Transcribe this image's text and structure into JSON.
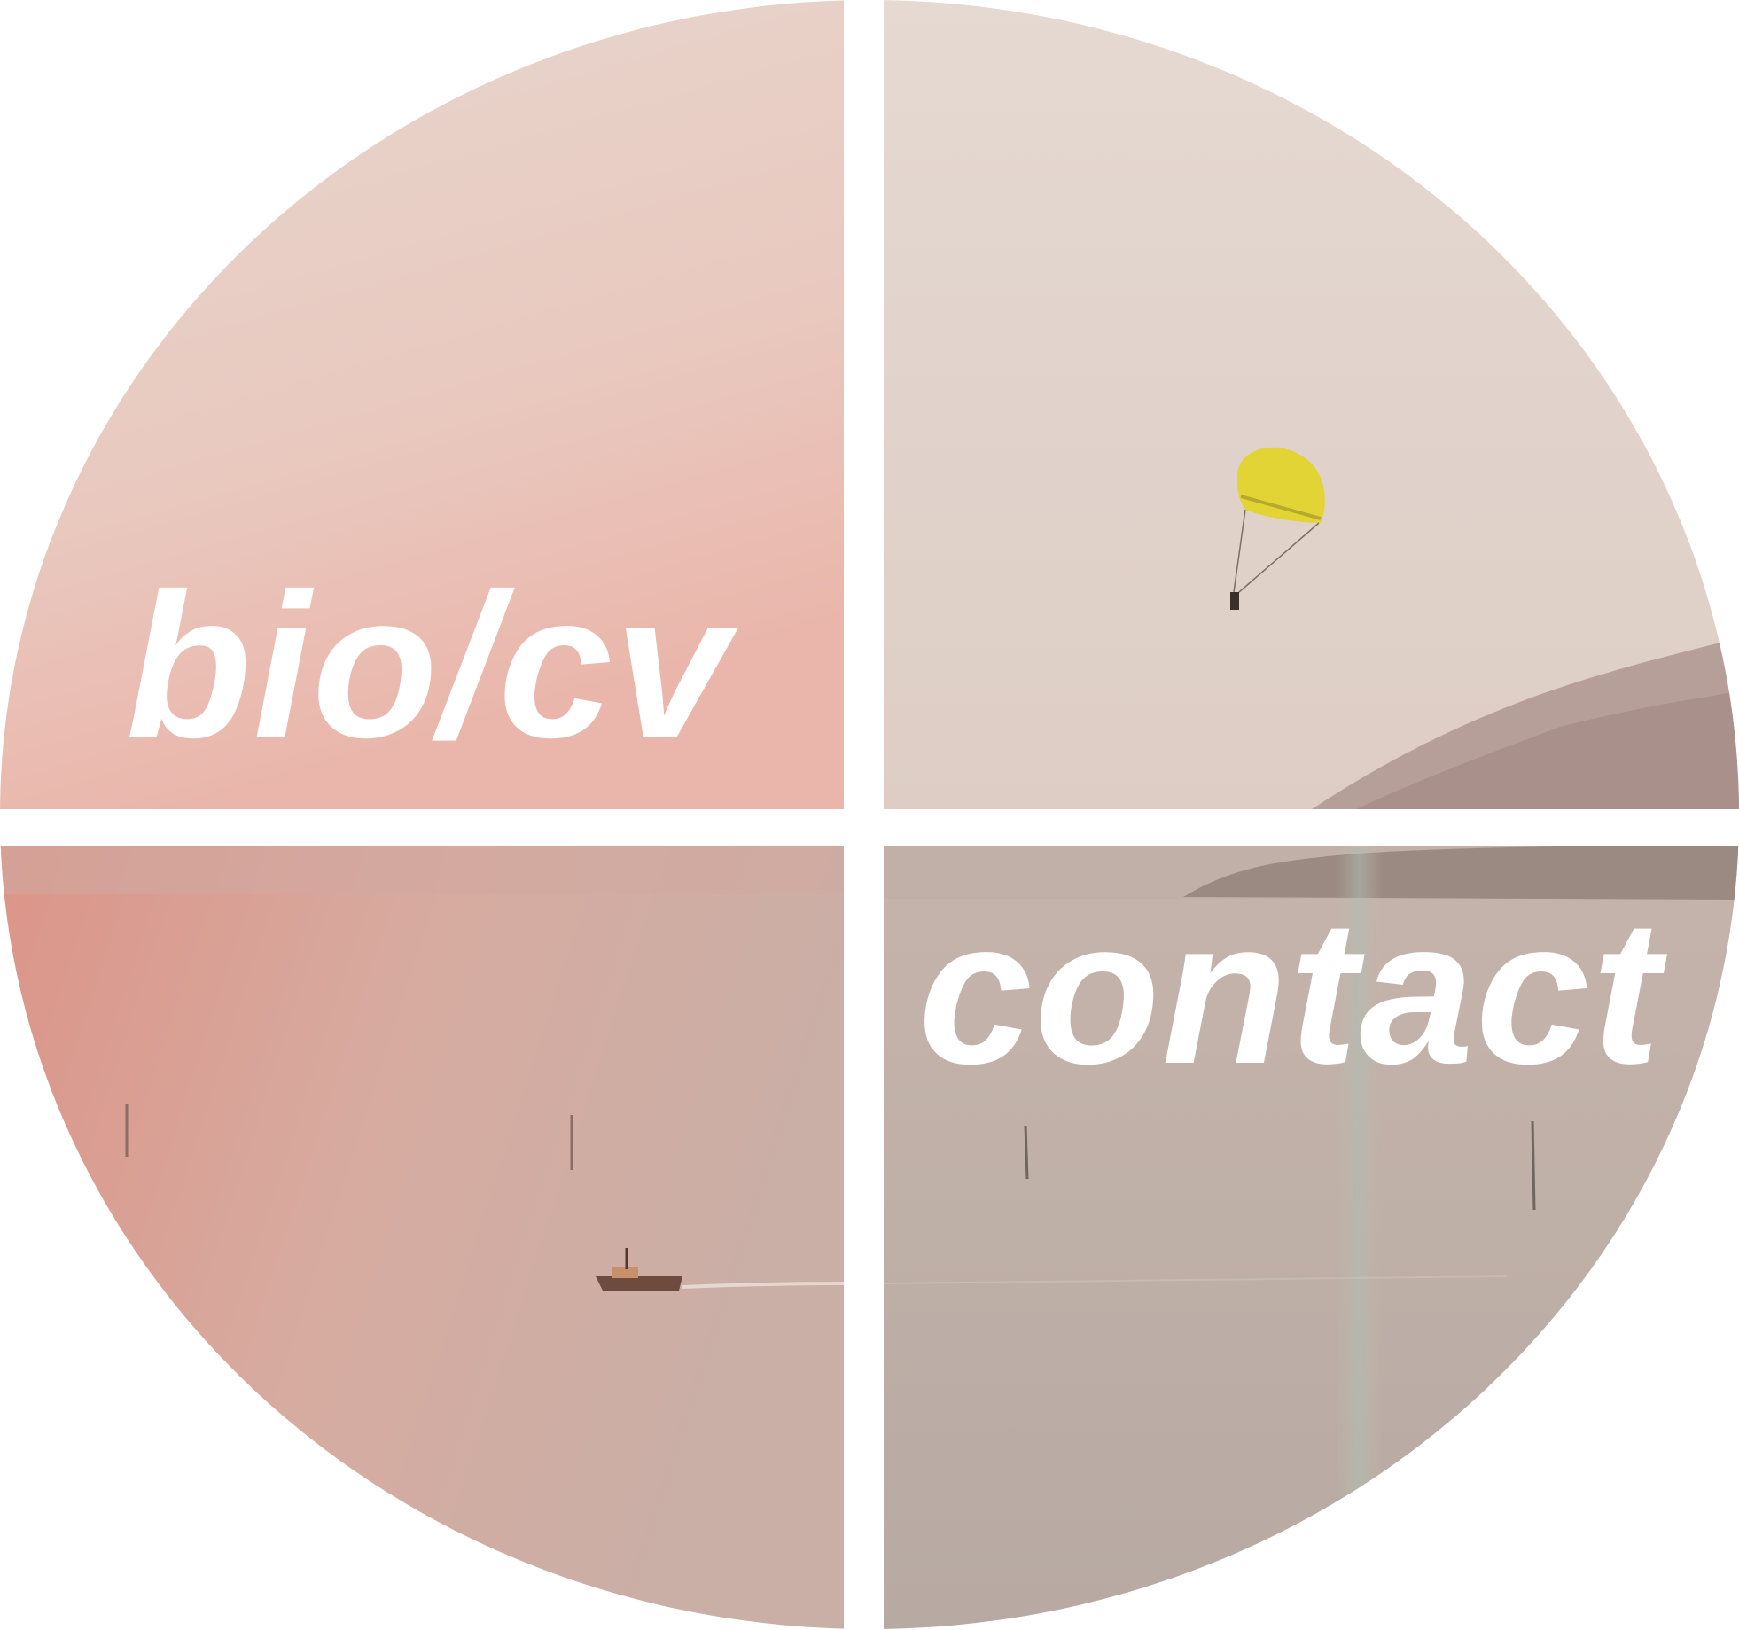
{
  "nav": {
    "quadrants": [
      {
        "id": "top-left",
        "label": "bio/cv",
        "link": true
      },
      {
        "id": "top-right",
        "label": "",
        "link": false
      },
      {
        "id": "bottom-left",
        "label": "",
        "link": false
      },
      {
        "id": "bottom-right",
        "label": "contact",
        "link": true
      }
    ]
  },
  "colors": {
    "background": "#ffffff",
    "divider": "#ffffff",
    "label": "#ffffff",
    "sky_top": "#e6d8d0",
    "sky_pink": "#e8bfb5",
    "sea_pink": "#d9998f",
    "sea_grey": "#b9aca4",
    "mountain": "#a88e86",
    "parasail": "#e2d434"
  }
}
